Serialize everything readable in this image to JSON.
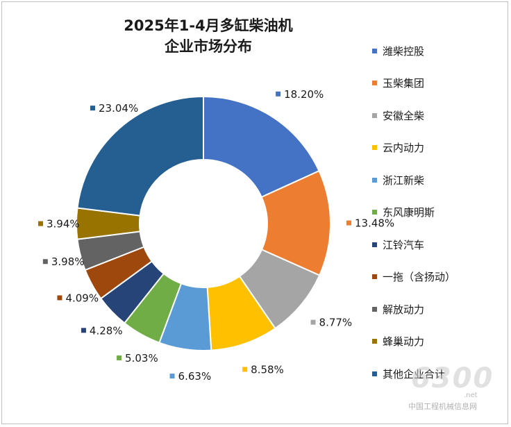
{
  "chart_data": {
    "type": "pie",
    "variant": "donut",
    "title_lines": [
      "2025年1-4月多缸柴油机",
      "企业市场分布"
    ],
    "legend_position": "right",
    "slices": [
      {
        "name": "潍柴控股",
        "value": 18.2,
        "label": "18.20%",
        "color": "#4472C4"
      },
      {
        "name": "玉柴集团",
        "value": 13.48,
        "label": "13.48%",
        "color": "#ED7D31"
      },
      {
        "name": "安徽全柴",
        "value": 8.77,
        "label": "8.77%",
        "color": "#A5A5A5"
      },
      {
        "name": "云内动力",
        "value": 8.58,
        "label": "8.58%",
        "color": "#FFC000"
      },
      {
        "name": "浙江新柴",
        "value": 6.63,
        "label": "6.63%",
        "color": "#5B9BD5"
      },
      {
        "name": "东风康明斯",
        "value": 5.03,
        "label": "5.03%",
        "color": "#70AD47"
      },
      {
        "name": "江铃汽车",
        "value": 4.28,
        "label": "4.28%",
        "color": "#264478"
      },
      {
        "name": "一拖（含扬动）",
        "value": 4.09,
        "label": "4.09%",
        "color": "#9E480E"
      },
      {
        "name": "解放动力",
        "value": 3.98,
        "label": "3.98%",
        "color": "#636363"
      },
      {
        "name": "蜂巢动力",
        "value": 3.94,
        "label": "3.94%",
        "color": "#997300"
      },
      {
        "name": "其他企业合计",
        "value": 23.04,
        "label": "23.04%",
        "color": "#255E91"
      }
    ]
  },
  "watermark": {
    "logo": "6300",
    "domain": ".net",
    "text": "中国工程机械信息网"
  }
}
